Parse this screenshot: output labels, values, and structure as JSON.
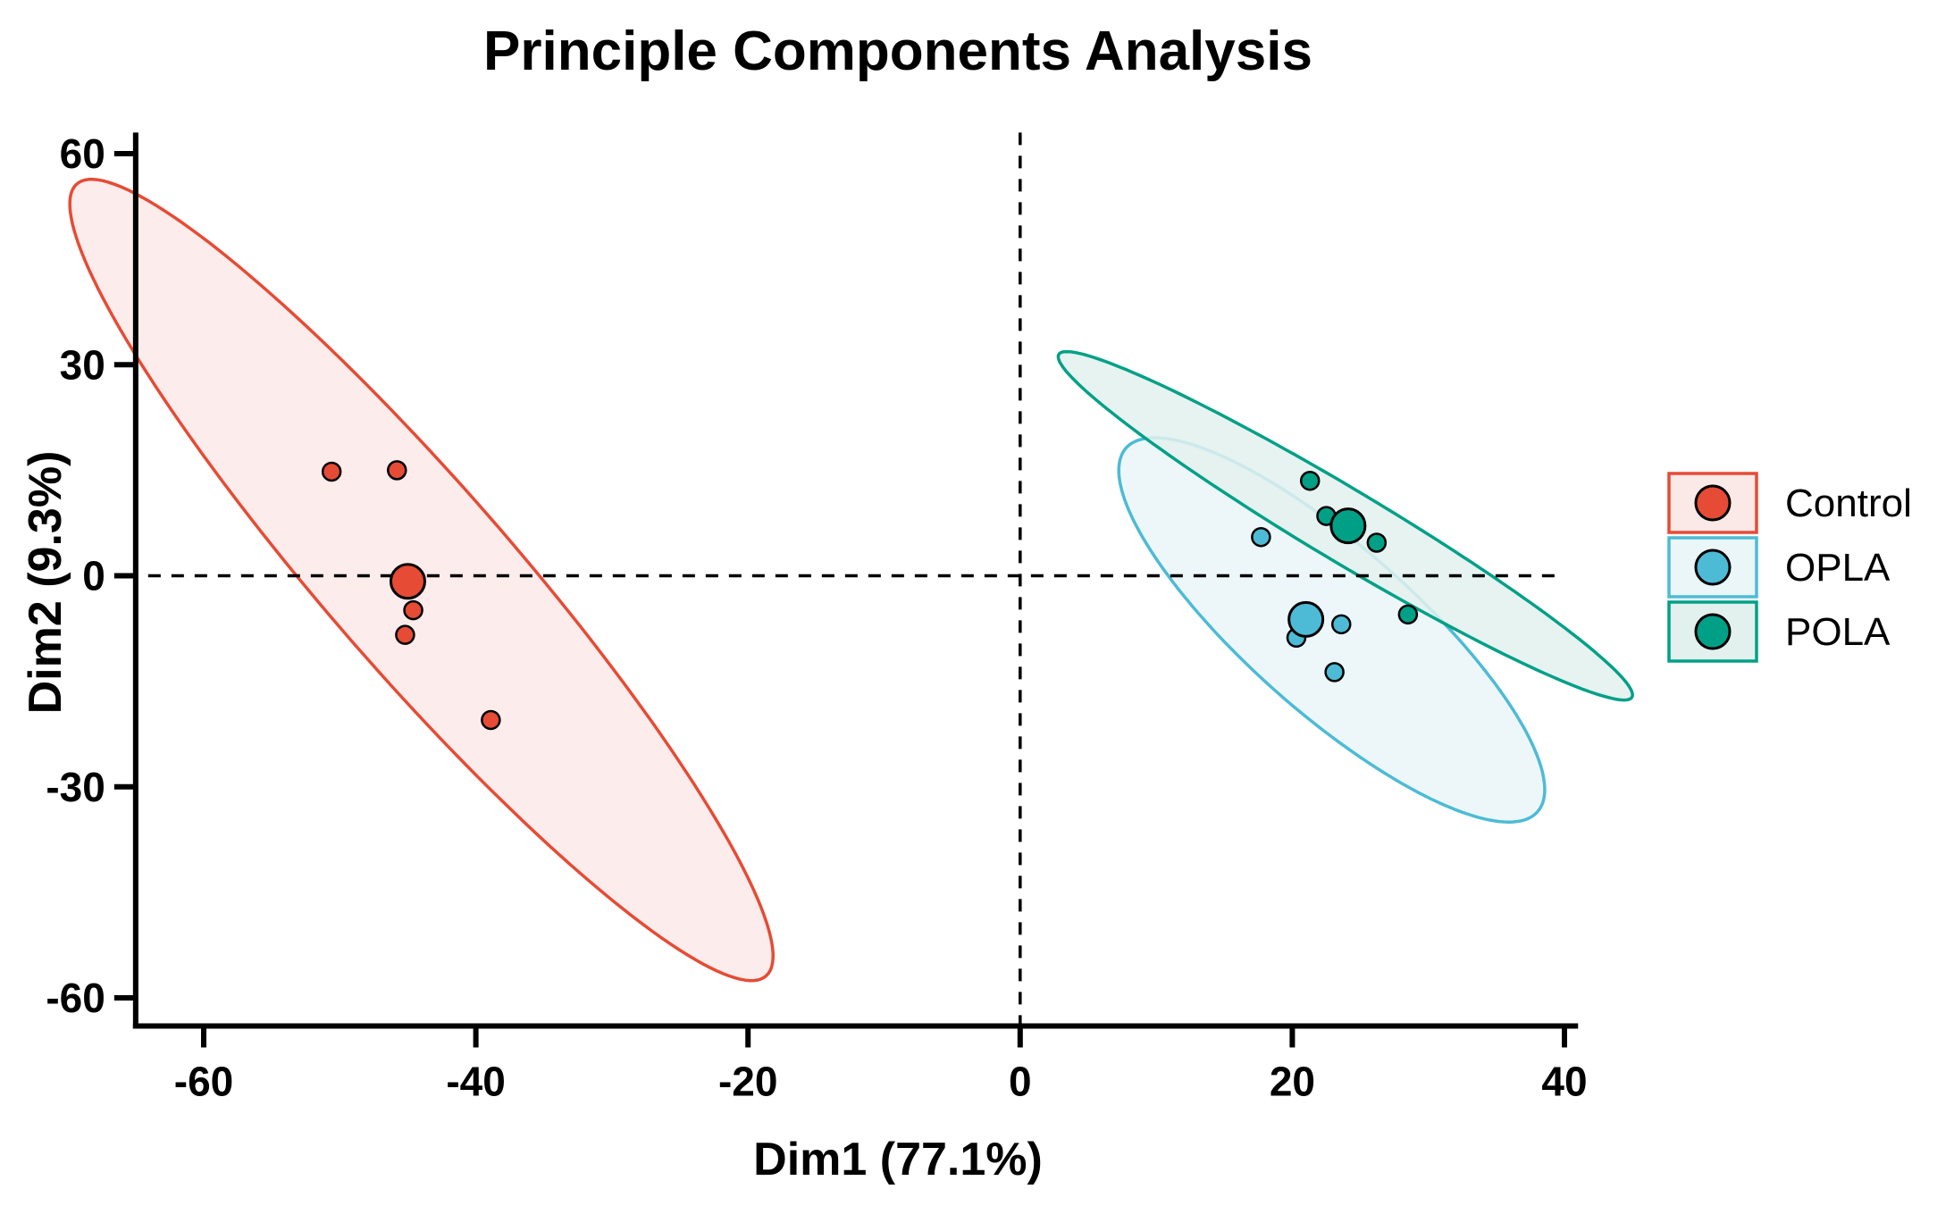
{
  "chart_data": {
    "type": "scatter",
    "title": "Principle Components Analysis",
    "xlabel": "Dim1 (77.1%)",
    "ylabel": "Dim2 (9.3%)",
    "xlim": [
      -65,
      41
    ],
    "ylim": [
      -64,
      63
    ],
    "xticks": [
      -60,
      -40,
      -20,
      0,
      20,
      40
    ],
    "yticks": [
      60,
      30,
      0,
      -30,
      -60
    ],
    "xtick_labels": [
      "-60",
      "-40",
      "-20",
      "0",
      "20",
      "40"
    ],
    "ytick_labels": [
      "60",
      "30",
      "0",
      "-30",
      "-60"
    ],
    "reference_lines": {
      "x": 0,
      "y": 0,
      "style": "dashed"
    },
    "legend_position": "right",
    "series": [
      {
        "name": "Control",
        "color": "#E64B35",
        "fill": "#FBE9E7",
        "points": [
          {
            "x": -50.6,
            "y": 14.8
          },
          {
            "x": -45.8,
            "y": 15.0
          },
          {
            "x": -44.6,
            "y": -4.9
          },
          {
            "x": -45.2,
            "y": -8.4
          },
          {
            "x": -38.9,
            "y": -20.5
          }
        ],
        "centroid": {
          "x": -45.0,
          "y": -0.8
        },
        "ellipse": {
          "cx": -44.0,
          "cy": -0.6,
          "rx": 62.0,
          "ry": 8.2,
          "angle_deg": -66.5
        }
      },
      {
        "name": "OPLA",
        "color": "#4DBBD5",
        "fill": "#EAF6F8",
        "points": [
          {
            "x": 17.7,
            "y": 5.5
          },
          {
            "x": 20.3,
            "y": -8.8
          },
          {
            "x": 23.6,
            "y": -6.9
          },
          {
            "x": 23.1,
            "y": -13.7
          }
        ],
        "centroid": {
          "x": 21.0,
          "y": -6.2
        },
        "ellipse": {
          "cx": 22.9,
          "cy": -7.7,
          "rx": 30.5,
          "ry": 7.8,
          "angle_deg": -62.6
        }
      },
      {
        "name": "POLA",
        "color": "#00A087",
        "fill": "#E3F1EE",
        "points": [
          {
            "x": 21.3,
            "y": 13.5
          },
          {
            "x": 22.5,
            "y": 8.5
          },
          {
            "x": 26.2,
            "y": 4.7
          },
          {
            "x": 28.5,
            "y": -5.5
          }
        ],
        "centroid": {
          "x": 24.1,
          "y": 7.1
        },
        "ellipse": {
          "cx": 23.9,
          "cy": 7.1,
          "rx": 32.3,
          "ry": 3.9,
          "angle_deg": -49.7
        }
      }
    ]
  }
}
